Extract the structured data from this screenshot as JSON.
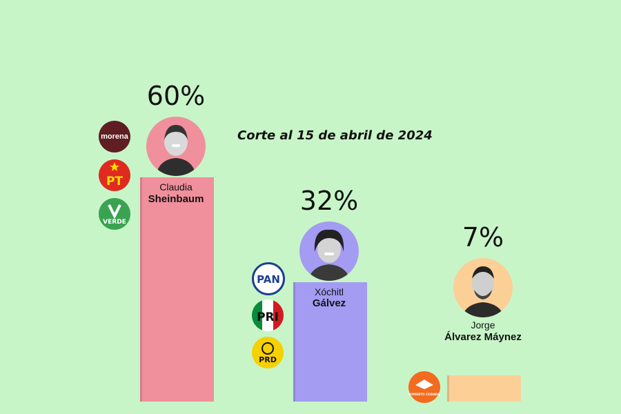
{
  "note": "Corte al 15 de abril de 2024",
  "chart_data": {
    "type": "bar",
    "categories": [
      "Claudia Sheinbaum",
      "Xóchitl Gálvez",
      "Jorge Álvarez Máynez"
    ],
    "values": [
      60,
      32,
      7
    ],
    "value_labels": [
      "60%",
      "32%",
      "7%"
    ],
    "unit": "%"
  },
  "candidates": [
    {
      "first": "Claudia",
      "last": "Sheinbaum",
      "pct_label": "60%",
      "bar_color": "#f0909c",
      "avatar_color": "#f0909c",
      "parties": [
        {
          "label": "morena",
          "color": "#5e1e22",
          "icon": "morena-logo"
        },
        {
          "label": "PT",
          "color": "#e02a1f",
          "icon": "pt-logo"
        },
        {
          "label": "VERDE",
          "color": "#3aa352",
          "icon": "verde-logo"
        }
      ]
    },
    {
      "first": "Xóchitl",
      "last": "Gálvez",
      "pct_label": "32%",
      "bar_color": "#a39cf2",
      "avatar_color": "#a39cf2",
      "parties": [
        {
          "label": "PAN",
          "color": "#1d3f8f",
          "icon": "pan-logo"
        },
        {
          "label": "PRI",
          "color": "#ffffff",
          "icon": "pri-logo"
        },
        {
          "label": "PRD",
          "color": "#f6d000",
          "icon": "prd-logo"
        }
      ]
    },
    {
      "first": "Jorge",
      "last": "Álvarez Máynez",
      "pct_label": "7%",
      "bar_color": "#fccf97",
      "avatar_color": "#fccf97",
      "parties": [
        {
          "label": "MOVIMIENTO CIUDADANO",
          "color": "#f26b1e",
          "icon": "movimiento-ciudadano-logo"
        }
      ]
    }
  ]
}
